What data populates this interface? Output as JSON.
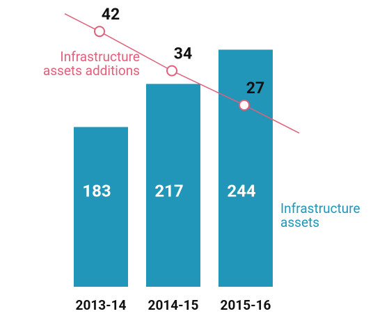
{
  "chart_data": {
    "type": "bar",
    "categories": [
      "2013-14",
      "2014-15",
      "2015-16"
    ],
    "series": [
      {
        "name": "Infrastructure assets",
        "color": "#2196b8",
        "values": [
          183,
          217,
          244
        ]
      },
      {
        "name": "Infrastructure assets additions",
        "color": "#e0607a",
        "values": [
          42,
          34,
          27
        ],
        "axis": "y2",
        "type": "line"
      }
    ],
    "ylim": [
      57,
      270
    ],
    "y2lim": [
      -10,
      45
    ]
  }
}
